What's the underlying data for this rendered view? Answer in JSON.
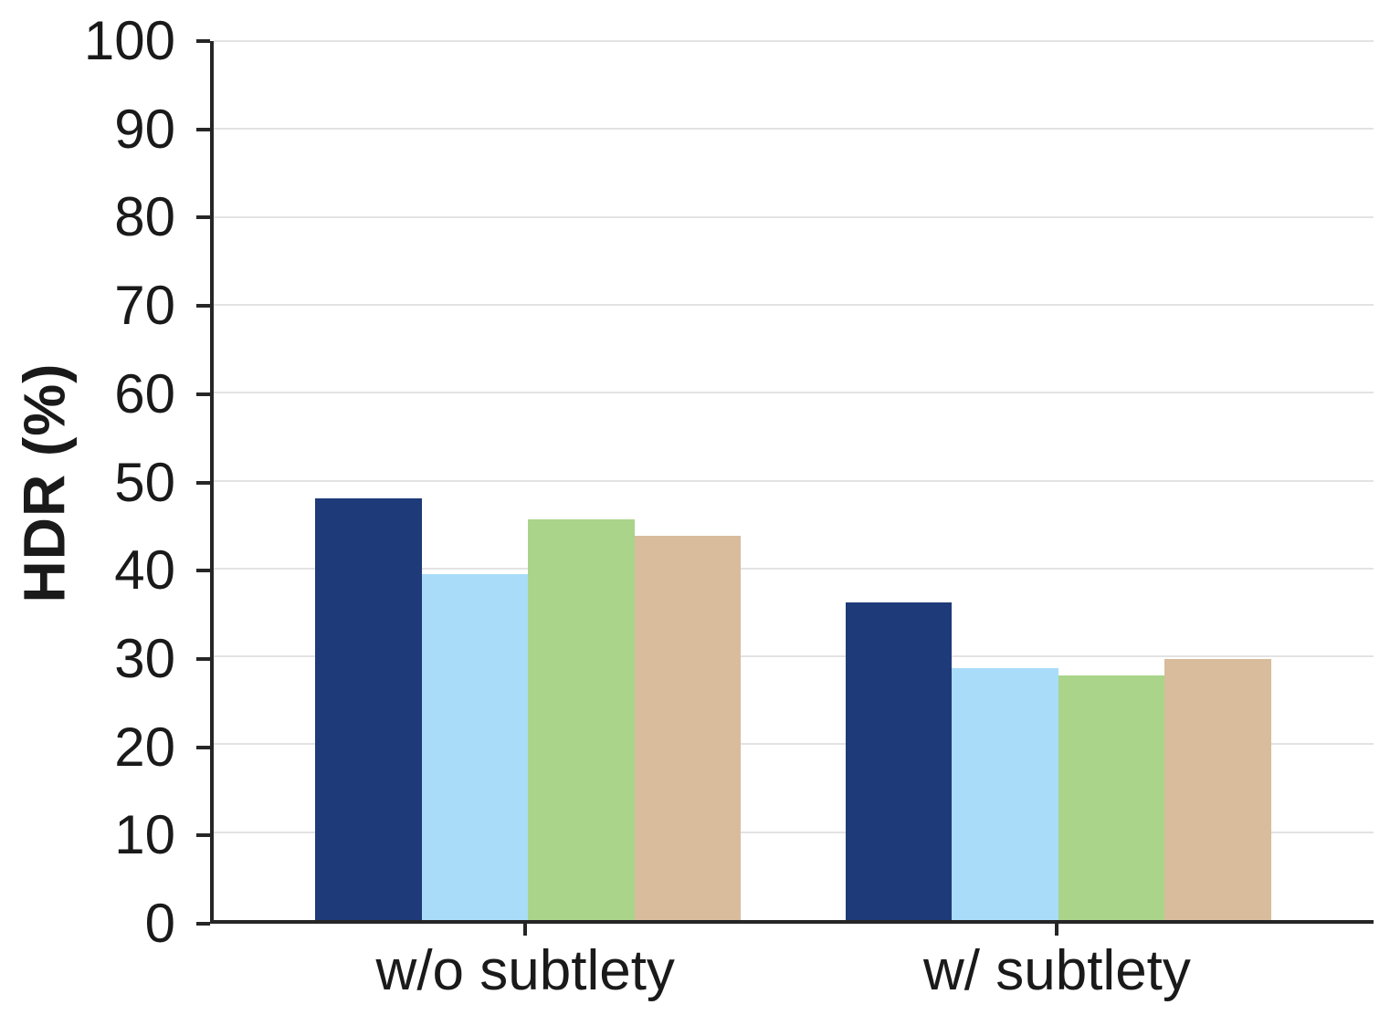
{
  "chart_data": {
    "type": "bar",
    "title": "",
    "xlabel": "",
    "ylabel": "HDR (%)",
    "ylim": [
      0,
      100
    ],
    "ytick_step": 10,
    "grid": true,
    "legend_position": "none",
    "categories": [
      "w/o subtlety",
      "w/ subtlety"
    ],
    "series": [
      {
        "name": "navy",
        "color": "#1e3a78",
        "values": [
          48.0,
          36.1
        ]
      },
      {
        "name": "light-blue",
        "color": "#a9dcf8",
        "values": [
          39.4,
          28.7
        ]
      },
      {
        "name": "green",
        "color": "#a9d48a",
        "values": [
          45.6,
          27.8
        ]
      },
      {
        "name": "tan",
        "color": "#d8bc9b",
        "values": [
          43.7,
          29.7
        ]
      }
    ],
    "axis_color": "#262626",
    "grid_color": "#e3e3e3",
    "background_color": "#ffffff"
  }
}
